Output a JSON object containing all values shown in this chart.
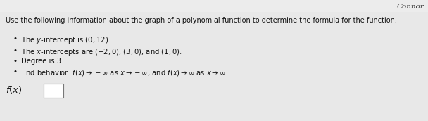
{
  "name": "Connor",
  "title_line": "Use the following information about the graph of a polynomial function to determine the formula for the function.",
  "bullet1": "The $y$-intercept is $(0, 12)$.",
  "bullet2": "The $x$-intercepts are $(-2, 0)$, $(3, 0)$, and $(1, 0)$.",
  "bullet3": "Degree is 3.",
  "bullet4": "End behavior: $f(x) \\rightarrow -\\infty$ as $x \\rightarrow -\\infty$, and $f(x) \\rightarrow \\infty$ as $x \\rightarrow \\infty$.",
  "answer_label": "$f(x) =$",
  "background_color": "#e8e8e8",
  "header_color": "#ebebeb",
  "text_color": "#111111",
  "box_color": "#ffffff",
  "name_color": "#444444",
  "line_color": "#bbbbbb",
  "title_fontsize": 7.0,
  "bullet_fontsize": 7.2,
  "name_fontsize": 7.5,
  "answer_fontsize": 9.5
}
